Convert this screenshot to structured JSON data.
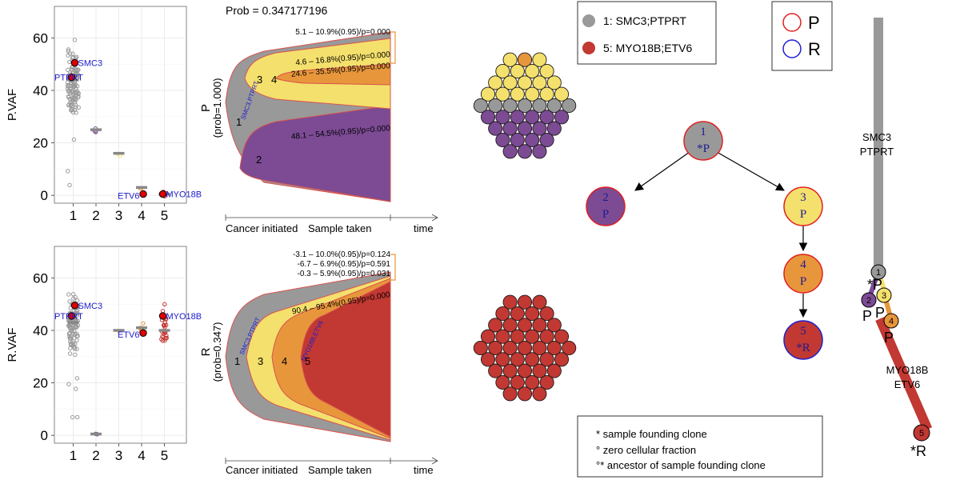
{
  "colors": {
    "clone1": "#999999",
    "clone2": "#7c4b94",
    "clone3": "#f4e06c",
    "clone4": "#e8963b",
    "clone5": "#c23832",
    "axis_border": "#e04040",
    "label_blue": "#1c1ccf",
    "gridline": "#ebebeb"
  },
  "header": {
    "prob_text": "Prob = 0.347177196"
  },
  "timeline": {
    "start": "Cancer initiated",
    "sample": "Sample taken",
    "end": "time"
  },
  "fish_P": {
    "side_label": "P",
    "prob_label": "(prob=1.000)",
    "clone_text": "SMC3,PTPRT",
    "annotations": [
      "5.1 – 10.9%(0.95)/p=0.000",
      "4.6 – 16.8%(0.95)/p=0.000",
      "24.6 – 35.5%(0.95)/p=0.000",
      "48.1 – 54.5%(0.95)/p=0.000"
    ],
    "numbers": [
      "1",
      "2",
      "3",
      "4"
    ]
  },
  "fish_R": {
    "side_label": "R",
    "prob_label": "(prob=0.347)",
    "clone_text_1": "SMC3,PTPRT",
    "clone_text_5": "MYO18B,ETV6",
    "annotations": [
      "-3.1 – 10.0%(0.95)/p=0.124",
      "-6.7 – 6.9%(0.95)/p=0.591",
      "-0.3 – 5.9%(0.95)/p=0.031",
      "90.4 – 95.4%(0.95)/p=0.000"
    ],
    "numbers": [
      "1",
      "3",
      "4",
      "5"
    ]
  },
  "legend_mutations": [
    {
      "label": "1: SMC3;PTPRT",
      "color": "#999999"
    },
    {
      "label": "5: MYO18B;ETV6",
      "color": "#c23832"
    }
  ],
  "legend_samples": [
    {
      "label": "P",
      "color": "#e02020"
    },
    {
      "label": "R",
      "color": "#2020d0"
    }
  ],
  "legend_notes": [
    "*  sample founding clone",
    "°  zero cellular fraction",
    "°* ancestor of sample founding clone"
  ],
  "tree": {
    "nodes": [
      {
        "id": "1",
        "sample": "*P"
      },
      {
        "id": "2",
        "sample": "P"
      },
      {
        "id": "3",
        "sample": "P"
      },
      {
        "id": "4",
        "sample": "P"
      },
      {
        "id": "5",
        "sample": "*R"
      }
    ]
  },
  "branch": {
    "label_top_1": "SMC3",
    "label_top_2": "PTPRT",
    "label_bottom_1": "MYO18B",
    "label_bottom_2": "ETV6",
    "node_labels": [
      "1",
      "2",
      "3",
      "4",
      "5"
    ],
    "sample_marks": [
      "*P",
      "P",
      "P",
      "P",
      "*R"
    ]
  },
  "chart_data": [
    {
      "type": "scatter",
      "ylabel": "P.VAF",
      "xlabel": "",
      "categories": [
        "1",
        "2",
        "3",
        "4",
        "5"
      ],
      "ylim": [
        -3,
        72
      ],
      "yticks": [
        0,
        20,
        40,
        60
      ],
      "cluster_medians": [
        44,
        25,
        16,
        3,
        0.5
      ],
      "highlighted": [
        {
          "cluster": 1,
          "value": 50.5,
          "label": "SMC3"
        },
        {
          "cluster": 1,
          "value": 45,
          "label": "PTPRT"
        },
        {
          "cluster": 4,
          "value": 0.5,
          "label": "ETV6"
        },
        {
          "cluster": 5,
          "value": 0.5,
          "label": "MYO18B"
        }
      ]
    },
    {
      "type": "scatter",
      "ylabel": "R.VAF",
      "xlabel": "",
      "categories": [
        "1",
        "2",
        "3",
        "4",
        "5"
      ],
      "ylim": [
        -3,
        72
      ],
      "yticks": [
        0,
        20,
        40,
        60
      ],
      "cluster_medians": [
        43,
        0.5,
        40,
        41,
        40
      ],
      "highlighted": [
        {
          "cluster": 1,
          "value": 49.5,
          "label": "SMC3"
        },
        {
          "cluster": 1,
          "value": 45.5,
          "label": "PTPRT"
        },
        {
          "cluster": 4,
          "value": 39,
          "label": "ETV6"
        },
        {
          "cluster": 5,
          "value": 45.5,
          "label": "MYO18B"
        }
      ]
    }
  ]
}
